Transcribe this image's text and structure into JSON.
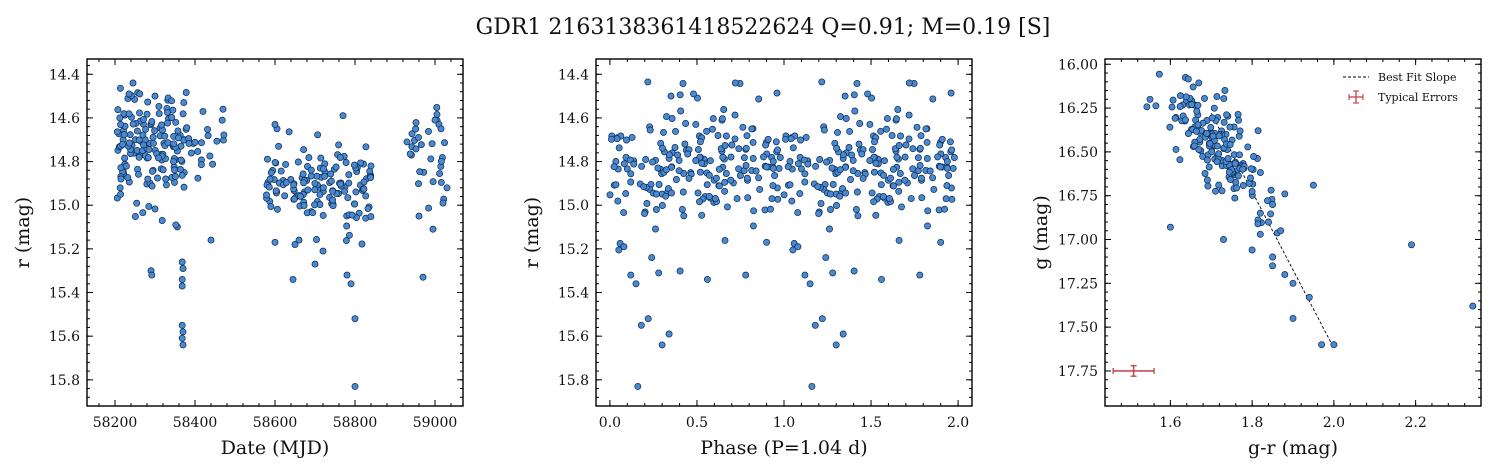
{
  "figure": {
    "title": "GDR1 2163138361418522624  Q=0.91; M=0.19 [S]"
  },
  "chart_data": [
    {
      "type": "scatter",
      "xlabel": "Date (MJD)",
      "ylabel": "r (mag)",
      "xlim": [
        58130,
        59070
      ],
      "ylim": [
        15.92,
        14.33
      ],
      "y_inverted": true,
      "xticks": [
        58200,
        58400,
        58600,
        58800,
        59000
      ],
      "yticks": [
        14.4,
        14.6,
        14.8,
        15.0,
        15.2,
        15.4,
        15.6,
        15.8
      ],
      "ytick_labels": [
        "14.4",
        "14.6",
        "14.8",
        "15.0",
        "15.2",
        "15.4",
        "15.6",
        "15.8"
      ],
      "color": "#4a88cf",
      "clusters": [
        {
          "x_range": [
            58205,
            58380
          ],
          "y_center": 14.72,
          "y_spread": 0.17,
          "n": 150
        },
        {
          "x_range": [
            58380,
            58480
          ],
          "y_center": 14.7,
          "y_spread": 0.13,
          "n": 18
        },
        {
          "x_range": [
            58570,
            58840
          ],
          "y_center": 14.92,
          "y_spread": 0.13,
          "n": 140
        },
        {
          "x_range": [
            58930,
            59030
          ],
          "y_center": 14.76,
          "y_spread": 0.12,
          "n": 28
        }
      ],
      "points": [
        [
          58245,
          14.44
        ],
        [
          58262,
          14.49
        ],
        [
          58300,
          14.5
        ],
        [
          58212,
          14.6
        ],
        [
          58214,
          14.63
        ],
        [
          58372,
          14.53
        ],
        [
          58470,
          14.56
        ],
        [
          58420,
          14.57
        ],
        [
          58215,
          14.88
        ],
        [
          58213,
          14.92
        ],
        [
          58214,
          14.95
        ],
        [
          58290,
          15.3
        ],
        [
          58292,
          15.32
        ],
        [
          58368,
          15.26
        ],
        [
          58370,
          15.29
        ],
        [
          58368,
          15.34
        ],
        [
          58368,
          15.37
        ],
        [
          58368,
          15.55
        ],
        [
          58370,
          15.58
        ],
        [
          58368,
          15.61
        ],
        [
          58370,
          15.64
        ],
        [
          58440,
          15.16
        ],
        [
          58318,
          15.07
        ],
        [
          58352,
          15.09
        ],
        [
          58600,
          15.17
        ],
        [
          58650,
          15.18
        ],
        [
          58660,
          15.16
        ],
        [
          58645,
          15.34
        ],
        [
          58720,
          15.21
        ],
        [
          58700,
          15.27
        ],
        [
          58780,
          15.32
        ],
        [
          58790,
          15.36
        ],
        [
          58800,
          15.52
        ],
        [
          58800,
          15.83
        ],
        [
          58770,
          14.59
        ],
        [
          58840,
          14.82
        ],
        [
          58605,
          14.65
        ],
        [
          58600,
          14.63
        ],
        [
          58970,
          15.33
        ],
        [
          58995,
          15.11
        ],
        [
          58960,
          15.05
        ],
        [
          59010,
          14.63
        ],
        [
          59015,
          14.65
        ],
        [
          59000,
          14.61
        ],
        [
          59030,
          14.92
        ],
        [
          59020,
          14.99
        ],
        [
          58930,
          14.71
        ]
      ]
    },
    {
      "type": "scatter",
      "xlabel": "Phase (P=1.04 d)",
      "ylabel": "r (mag)",
      "xlim": [
        -0.08,
        2.08
      ],
      "ylim": [
        15.92,
        14.33
      ],
      "y_inverted": true,
      "xticks": [
        0.0,
        0.5,
        1.0,
        1.5,
        2.0
      ],
      "xtick_labels": [
        "0.0",
        "0.5",
        "1.0",
        "1.5",
        "2.0"
      ],
      "yticks": [
        14.4,
        14.6,
        14.8,
        15.0,
        15.2,
        15.4,
        15.6,
        15.8
      ],
      "ytick_labels": [
        "14.4",
        "14.6",
        "14.8",
        "15.0",
        "15.2",
        "15.4",
        "15.6",
        "15.8"
      ],
      "color": "#4a88cf",
      "period_days": 1.04,
      "points": [
        [
          0.16,
          15.83
        ],
        [
          1.16,
          15.83
        ],
        [
          0.18,
          15.55
        ],
        [
          1.18,
          15.55
        ],
        [
          0.22,
          15.52
        ],
        [
          1.22,
          15.52
        ],
        [
          0.3,
          15.64
        ],
        [
          1.3,
          15.64
        ],
        [
          0.34,
          15.59
        ],
        [
          1.34,
          15.59
        ],
        [
          0.12,
          15.32
        ],
        [
          1.12,
          15.32
        ],
        [
          0.15,
          15.36
        ],
        [
          1.15,
          15.36
        ],
        [
          0.24,
          15.24
        ],
        [
          1.24,
          15.24
        ],
        [
          0.28,
          15.31
        ],
        [
          1.28,
          15.31
        ],
        [
          0.56,
          15.34
        ],
        [
          1.56,
          15.34
        ],
        [
          0.78,
          15.32
        ],
        [
          1.78,
          15.32
        ],
        [
          0.72,
          14.44
        ],
        [
          1.72,
          14.44
        ],
        [
          0.48,
          14.49
        ],
        [
          1.48,
          14.49
        ],
        [
          0.08,
          15.19
        ],
        [
          1.08,
          15.19
        ],
        [
          0.9,
          15.17
        ],
        [
          1.9,
          15.17
        ]
      ],
      "clusters": [
        {
          "x_range": [
            0.0,
            1.0
          ],
          "y_center": 14.8,
          "y_spread": 0.2,
          "n": 200
        }
      ]
    },
    {
      "type": "scatter",
      "xlabel": "g-r (mag)",
      "ylabel": "g (mag)",
      "xlim": [
        1.44,
        2.36
      ],
      "ylim": [
        17.95,
        15.97
      ],
      "y_inverted": true,
      "xticks": [
        1.6,
        1.8,
        2.0,
        2.2
      ],
      "xtick_labels": [
        "1.6",
        "1.8",
        "2.0",
        "2.2"
      ],
      "yticks": [
        16.0,
        16.25,
        16.5,
        16.75,
        17.0,
        17.25,
        17.5,
        17.75
      ],
      "ytick_labels": [
        "16.00",
        "16.25",
        "16.50",
        "16.75",
        "17.00",
        "17.25",
        "17.50",
        "17.75"
      ],
      "color": "#4a88cf",
      "legend": {
        "position": "top-right",
        "entries": [
          {
            "label": "Best Fit Slope",
            "style": "dashed-line",
            "color": "#000000"
          },
          {
            "label": "Typical Errors",
            "style": "errorbar",
            "color": "#c44e52"
          }
        ]
      },
      "best_fit": {
        "x": [
          1.7,
          2.0
        ],
        "y": [
          16.28,
          17.62
        ]
      },
      "typical_error": {
        "x": 1.51,
        "y": 17.75,
        "xerr": 0.05,
        "yerr": 0.03
      },
      "clusters": [
        {
          "x_center": 1.71,
          "y_center": 16.45,
          "x_spread": 0.09,
          "y_spread": 0.22,
          "n": 170
        }
      ],
      "points": [
        [
          1.55,
          16.2
        ],
        [
          1.6,
          16.93
        ],
        [
          1.95,
          16.69
        ],
        [
          1.82,
          16.97
        ],
        [
          1.8,
          17.06
        ],
        [
          1.85,
          17.1
        ],
        [
          1.85,
          17.15
        ],
        [
          1.88,
          17.2
        ],
        [
          1.9,
          17.25
        ],
        [
          1.94,
          17.33
        ],
        [
          1.9,
          17.45
        ],
        [
          1.97,
          17.6
        ],
        [
          2.0,
          17.6
        ],
        [
          2.19,
          17.03
        ],
        [
          2.34,
          17.38
        ],
        [
          1.73,
          17.0
        ],
        [
          1.82,
          16.85
        ],
        [
          1.85,
          16.8
        ],
        [
          1.88,
          16.74
        ],
        [
          1.84,
          16.9
        ],
        [
          1.87,
          16.95
        ]
      ]
    }
  ]
}
